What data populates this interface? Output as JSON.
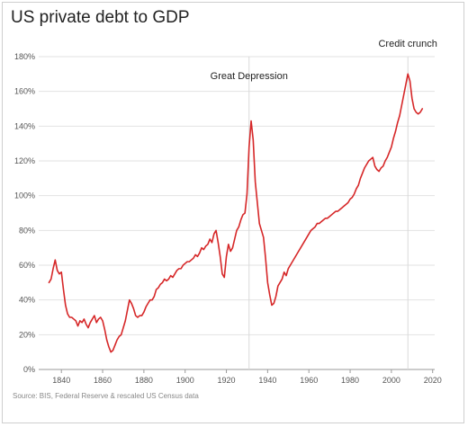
{
  "chart_data": {
    "type": "line",
    "title": "US private debt to GDP",
    "source": "Source: BIS, Federal Reserve & rescaled US Census data",
    "xlabel": "",
    "ylabel": "",
    "xlim": [
      1829,
      2021
    ],
    "ylim": [
      0,
      180
    ],
    "x_ticks": [
      1840,
      1860,
      1880,
      1900,
      1920,
      1940,
      1960,
      1980,
      2000,
      2020
    ],
    "x_tick_labels": [
      "1840",
      "1860",
      "1880",
      "1900",
      "1920",
      "1940",
      "1960",
      "1980",
      "2000",
      "2020"
    ],
    "y_ticks": [
      0,
      20,
      40,
      60,
      80,
      100,
      120,
      140,
      160,
      180
    ],
    "y_tick_labels": [
      "0%",
      "20%",
      "40%",
      "60%",
      "80%",
      "100%",
      "120%",
      "140%",
      "160%",
      "180%"
    ],
    "grid": "horizontal",
    "line_color": "#d62728",
    "annotations": [
      {
        "text": "Great Depression",
        "x": 1931
      },
      {
        "text": "Credit crunch",
        "x": 2008
      }
    ],
    "series": [
      {
        "values_x": [
          1834,
          1835,
          1836,
          1837,
          1838,
          1839,
          1840,
          1841,
          1842,
          1843,
          1844,
          1845,
          1846,
          1847,
          1848,
          1849,
          1850,
          1851,
          1852,
          1853,
          1854,
          1855,
          1856,
          1857,
          1858,
          1859,
          1860,
          1861,
          1862,
          1863,
          1864,
          1865,
          1866,
          1867,
          1868,
          1869,
          1870,
          1871,
          1872,
          1873,
          1874,
          1875,
          1876,
          1877,
          1878,
          1879,
          1880,
          1881,
          1882,
          1883,
          1884,
          1885,
          1886,
          1887,
          1888,
          1889,
          1890,
          1891,
          1892,
          1893,
          1894,
          1895,
          1896,
          1897,
          1898,
          1899,
          1900,
          1901,
          1902,
          1903,
          1904,
          1905,
          1906,
          1907,
          1908,
          1909,
          1910,
          1911,
          1912,
          1913,
          1914,
          1915,
          1916,
          1917,
          1918,
          1919,
          1920,
          1921,
          1922,
          1923,
          1924,
          1925,
          1926,
          1927,
          1928,
          1929,
          1930,
          1931,
          1932,
          1933,
          1934,
          1935,
          1936,
          1937,
          1938,
          1939,
          1940,
          1941,
          1942,
          1943,
          1944,
          1945,
          1946,
          1947,
          1948,
          1949,
          1950,
          1951,
          1952,
          1953,
          1954,
          1955,
          1956,
          1957,
          1958,
          1959,
          1960,
          1961,
          1962,
          1963,
          1964,
          1965,
          1966,
          1967,
          1968,
          1969,
          1970,
          1971,
          1972,
          1973,
          1974,
          1975,
          1976,
          1977,
          1978,
          1979,
          1980,
          1981,
          1982,
          1983,
          1984,
          1985,
          1986,
          1987,
          1988,
          1989,
          1990,
          1991,
          1992,
          1993,
          1994,
          1995,
          1996,
          1997,
          1998,
          1999,
          2000,
          2001,
          2002,
          2003,
          2004,
          2005,
          2006,
          2007,
          2008,
          2009,
          2010,
          2011,
          2012,
          2013,
          2014,
          2015
        ],
        "values_y": [
          50,
          52,
          58,
          63,
          57,
          55,
          56,
          46,
          37,
          32,
          30,
          30,
          29,
          28,
          25,
          28,
          27,
          29,
          26,
          24,
          27,
          29,
          31,
          27,
          29,
          30,
          28,
          23,
          17,
          13,
          10,
          11,
          14,
          17,
          19,
          20,
          24,
          28,
          34,
          40,
          38,
          35,
          31,
          30,
          31,
          31,
          33,
          36,
          38,
          40,
          40,
          42,
          46,
          47,
          49,
          50,
          52,
          51,
          52,
          54,
          53,
          55,
          57,
          58,
          58,
          60,
          61,
          62,
          62,
          63,
          64,
          66,
          65,
          67,
          70,
          69,
          71,
          72,
          75,
          73,
          78,
          80,
          73,
          65,
          55,
          53,
          65,
          72,
          68,
          70,
          75,
          80,
          82,
          86,
          89,
          90,
          101,
          128,
          143,
          132,
          108,
          96,
          84,
          80,
          76,
          64,
          50,
          43,
          37,
          38,
          42,
          48,
          50,
          52,
          56,
          54,
          58,
          60,
          62,
          64,
          66,
          68,
          70,
          72,
          74,
          76,
          78,
          80,
          81,
          82,
          84,
          84,
          85,
          86,
          87,
          87,
          88,
          89,
          90,
          91,
          91,
          92,
          93,
          94,
          95,
          96,
          98,
          99,
          101,
          104,
          106,
          110,
          113,
          116,
          118,
          120,
          121,
          122,
          117,
          115,
          114,
          116,
          117,
          120,
          122,
          125,
          128,
          133,
          137,
          142,
          146,
          152,
          158,
          164,
          170,
          166,
          156,
          150,
          148,
          147,
          148,
          150
        ]
      }
    ]
  }
}
